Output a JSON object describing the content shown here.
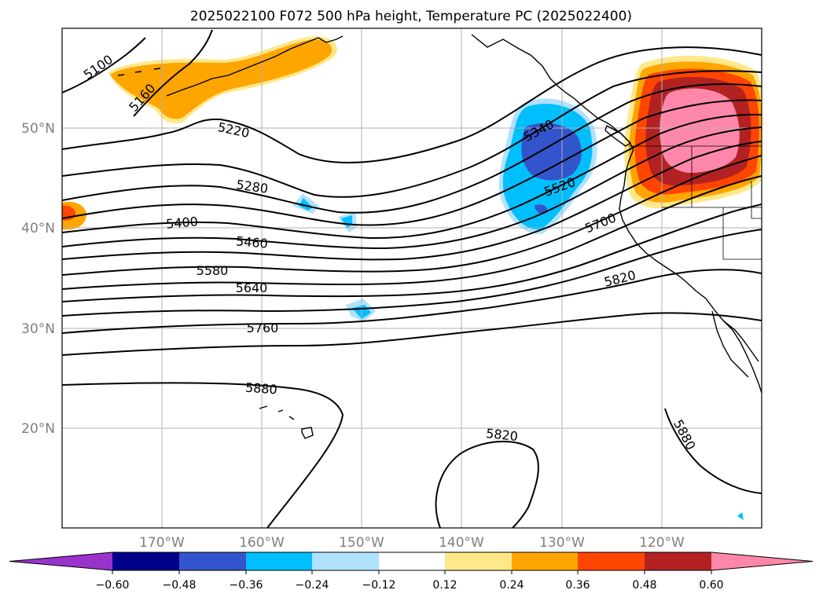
{
  "title": "2025022100 F072 500 hPa height, Temperature PC (2025022400)",
  "map": {
    "lat_labels": [
      "50°N",
      "40°N",
      "30°N",
      "20°N"
    ],
    "lon_labels": [
      "170°W",
      "160°W",
      "150°W",
      "140°W",
      "130°W",
      "120°W"
    ],
    "grid": true
  },
  "contour_labels": [
    "5100",
    "5160",
    "5220",
    "5280",
    "5340",
    "5400",
    "5460",
    "5520",
    "5580",
    "5640",
    "5700",
    "5760",
    "5820",
    "5820",
    "5880",
    "5880"
  ],
  "colorbar": {
    "ticks": [
      "−0.60",
      "−0.48",
      "−0.36",
      "−0.24",
      "−0.12",
      "0.12",
      "0.24",
      "0.36",
      "0.48",
      "0.60"
    ],
    "colors": [
      "#9933cc",
      "#00008b",
      "#3355cc",
      "#00bfff",
      "#b0e2ff",
      "#ffffff",
      "#ffe88a",
      "#ffa500",
      "#ff4500",
      "#b22222",
      "#ff88aa",
      "#ff88aa"
    ],
    "extend": "both"
  }
}
